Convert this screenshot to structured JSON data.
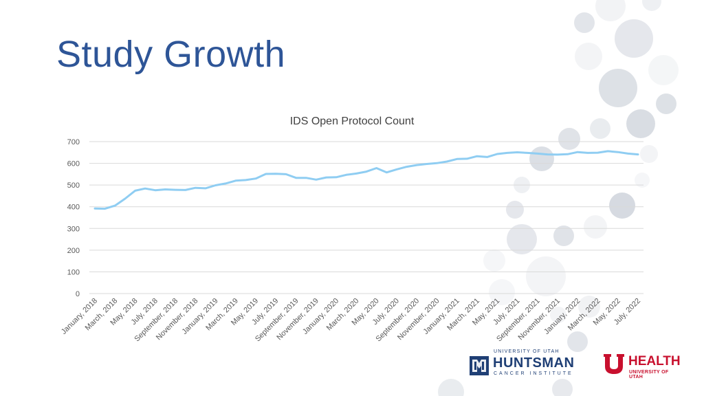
{
  "slide": {
    "title": "Study Growth"
  },
  "chart_data": {
    "type": "line",
    "title": "IDS Open Protocol Count",
    "xlabel": "",
    "ylabel": "",
    "ylim": [
      0,
      700
    ],
    "yticks": [
      0,
      100,
      200,
      300,
      400,
      500,
      600,
      700
    ],
    "grid": true,
    "legend": "none",
    "x_tick_labels": [
      "January, 2018",
      "March, 2018",
      "May, 2018",
      "July, 2018",
      "September, 2018",
      "November, 2018",
      "January, 2019",
      "March, 2019",
      "May, 2019",
      "July, 2019",
      "September, 2019",
      "November, 2019",
      "January, 2020",
      "March, 2020",
      "May, 2020",
      "July, 2020",
      "September, 2020",
      "November, 2020",
      "January, 2021",
      "March, 2021",
      "May, 2021",
      "July, 2021",
      "September, 2021",
      "November, 2021",
      "January, 2022",
      "March, 2022",
      "May, 2022",
      "July, 2022"
    ],
    "series": [
      {
        "color": "#8fcdf2",
        "x": [
          "January, 2018",
          "February, 2018",
          "March, 2018",
          "April, 2018",
          "May, 2018",
          "June, 2018",
          "July, 2018",
          "August, 2018",
          "September, 2018",
          "October, 2018",
          "November, 2018",
          "December, 2018",
          "January, 2019",
          "February, 2019",
          "March, 2019",
          "April, 2019",
          "May, 2019",
          "June, 2019",
          "July, 2019",
          "August, 2019",
          "September, 2019",
          "October, 2019",
          "November, 2019",
          "December, 2019",
          "January, 2020",
          "February, 2020",
          "March, 2020",
          "April, 2020",
          "May, 2020",
          "June, 2020",
          "July, 2020",
          "August, 2020",
          "September, 2020",
          "October, 2020",
          "November, 2020",
          "December, 2020",
          "January, 2021",
          "February, 2021",
          "March, 2021",
          "April, 2021",
          "May, 2021",
          "June, 2021",
          "July, 2021",
          "August, 2021",
          "September, 2021",
          "October, 2021",
          "November, 2021",
          "December, 2021",
          "January, 2022",
          "February, 2022",
          "March, 2022",
          "April, 2022",
          "May, 2022",
          "June, 2022",
          "July, 2022"
        ],
        "values": [
          392,
          391,
          405,
          437,
          474,
          484,
          476,
          480,
          478,
          477,
          487,
          485,
          499,
          507,
          520,
          523,
          530,
          551,
          552,
          550,
          533,
          533,
          525,
          535,
          536,
          547,
          553,
          562,
          578,
          558,
          572,
          584,
          592,
          597,
          601,
          608,
          620,
          621,
          633,
          629,
          643,
          648,
          651,
          648,
          645,
          641,
          640,
          642,
          652,
          648,
          649,
          656,
          652,
          645,
          641
        ]
      }
    ]
  },
  "logos": {
    "huntsman": {
      "top": "UNIVERSITY OF UTAH",
      "name": "HUNTSMAN",
      "sub": "CANCER INSTITUTE",
      "color": "#1f3f75"
    },
    "health": {
      "name": "HEALTH",
      "sub": "UNIVERSITY OF UTAH",
      "color": "#c8102e"
    }
  }
}
